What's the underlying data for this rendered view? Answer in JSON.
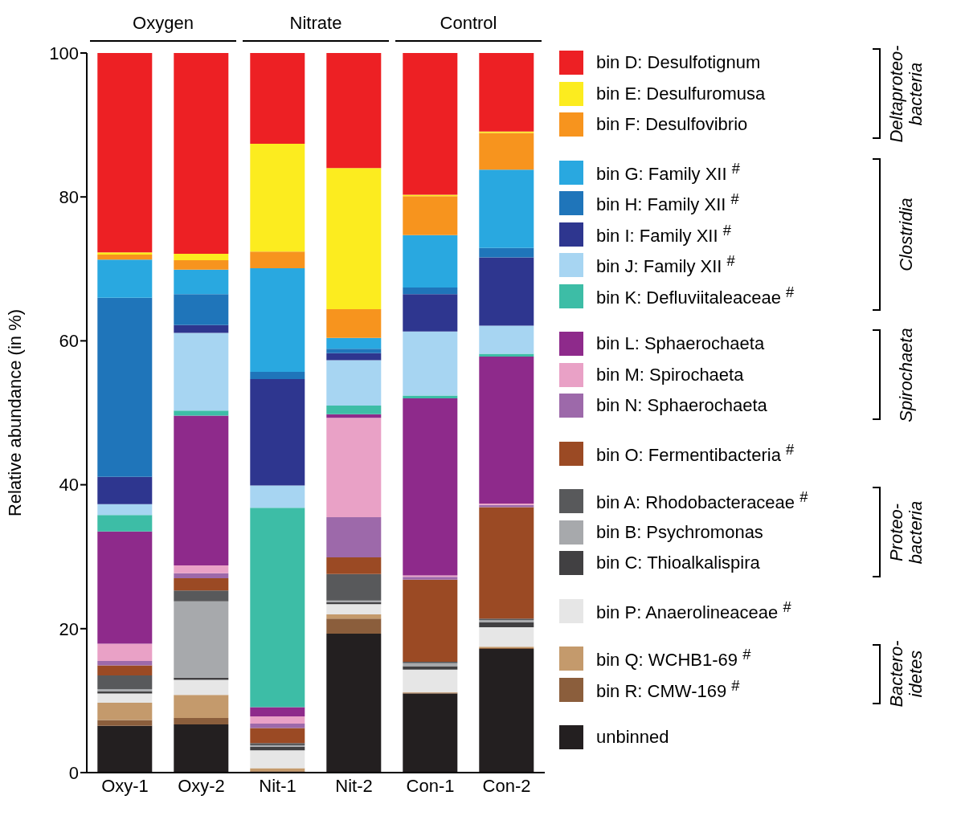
{
  "chart_data": {
    "type": "bar",
    "stacked": true,
    "ylabel": "Relative abundance (in %)",
    "categories": [
      "Oxy-1",
      "Oxy-2",
      "Nit-1",
      "Nit-2",
      "Con-1",
      "Con-2"
    ],
    "ylim": [
      0,
      100
    ],
    "yticks": [
      0,
      20,
      40,
      60,
      80,
      100
    ],
    "grid": false,
    "legend": "right",
    "annotations": [
      "Oxygen",
      "Nitrate",
      "Control",
      "Deltaproteo-\nbacteria",
      "Clostridia",
      "Spirochaeta",
      "Proteo-\nbacteria",
      "Bactero-\nidetes"
    ],
    "series": [
      {
        "name": "unbinned",
        "color": "#231f20",
        "values": [
          6.5,
          6.7,
          0.1,
          19.3,
          11.0,
          17.2
        ]
      },
      {
        "name": "bin R: CMW-169 $^{#}$",
        "color": "#8b5e3c",
        "values": [
          0.8,
          0.9,
          0.1,
          2.1,
          0.1,
          0.1
        ]
      },
      {
        "name": "bin Q: WCHB1-69 $^{#}$",
        "color": "#c49a6c",
        "values": [
          2.4,
          3.2,
          0.4,
          0.6,
          0.1,
          0.2
        ]
      },
      {
        "name": "bin P: Anaerolineaceae $^{#}$",
        "color": "#e6e6e6",
        "values": [
          1.3,
          2.1,
          2.5,
          1.4,
          3.1,
          2.7
        ]
      },
      {
        "name": "bin C: Thioalkalispira",
        "color": "#414042",
        "values": [
          0.3,
          0.3,
          0.5,
          0.3,
          0.5,
          0.7
        ]
      },
      {
        "name": "bin B: Psychromonas",
        "color": "#a7a9ac",
        "values": [
          0.3,
          10.6,
          0.2,
          0.2,
          0.4,
          0.3
        ]
      },
      {
        "name": "bin A: Rhodobacteraceae $^{#}$",
        "color": "#58595b",
        "values": [
          1.9,
          1.5,
          0.3,
          3.7,
          0.2,
          0.2
        ]
      },
      {
        "name": "bin O: Fermentibacteria $^{#}$",
        "color": "#9b4a24",
        "values": [
          1.4,
          1.7,
          2.1,
          2.3,
          11.4,
          15.5
        ]
      },
      {
        "name": "bin N: Sphaerochaeta",
        "color": "#9d69aa",
        "values": [
          0.6,
          0.7,
          0.6,
          5.6,
          0.4,
          0.3
        ]
      },
      {
        "name": "bin M: Spirochaeta",
        "color": "#e9a1c6",
        "values": [
          2.4,
          1.1,
          1.0,
          13.8,
          0.2,
          0.2
        ]
      },
      {
        "name": "bin L: Sphaerochaeta",
        "color": "#8e2a8b",
        "values": [
          15.6,
          20.8,
          1.3,
          0.5,
          24.6,
          20.4
        ]
      },
      {
        "name": "bin K: Defluviitaleaceae $^{#}$",
        "color": "#3dbda6",
        "values": [
          2.3,
          0.7,
          27.7,
          1.2,
          0.4,
          0.4
        ]
      },
      {
        "name": "bin J: Family XII $^{#}$",
        "color": "#a7d5f2",
        "values": [
          1.5,
          10.8,
          3.1,
          6.3,
          8.9,
          3.9
        ]
      },
      {
        "name": "bin I: Family XII $^{#}$",
        "color": "#2e368f",
        "values": [
          3.8,
          1.1,
          14.8,
          1.0,
          5.2,
          9.5
        ]
      },
      {
        "name": "bin H: Family XII $^{#}$",
        "color": "#1f75ba",
        "values": [
          24.9,
          4.3,
          1.0,
          0.6,
          0.9,
          1.3
        ]
      },
      {
        "name": "bin G: Family XII $^{#}$",
        "color": "#29a8e0",
        "values": [
          5.3,
          3.4,
          14.4,
          1.5,
          7.3,
          10.9
        ]
      },
      {
        "name": "bin F: Desulfovibrio",
        "color": "#f7941e",
        "values": [
          0.7,
          1.3,
          2.3,
          4.0,
          5.4,
          5.1
        ]
      },
      {
        "name": "bin E: Desulfuromusa",
        "color": "#fcec1f",
        "values": [
          0.3,
          0.9,
          15.0,
          19.6,
          0.2,
          0.2
        ]
      },
      {
        "name": "bin D: Desulfotignum",
        "color": "#ed2024",
        "values": [
          27.7,
          27.9,
          12.6,
          16.0,
          19.7,
          10.9
        ]
      }
    ]
  }
}
